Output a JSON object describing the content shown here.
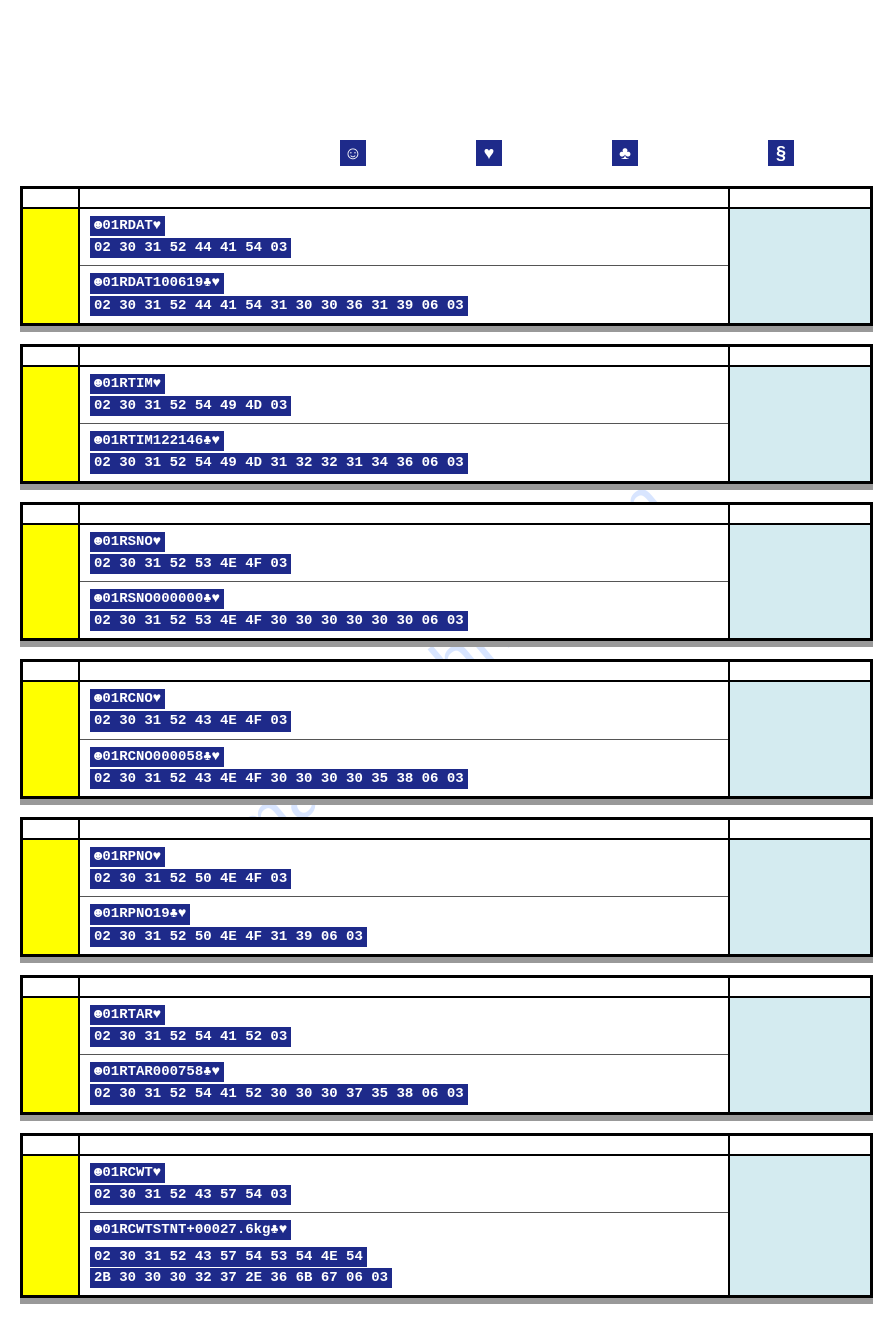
{
  "watermark_text": "manualshive.com",
  "header_icons": [
    "☺",
    "♥",
    "♣",
    "§"
  ],
  "icon_bg": "#1e2a8a",
  "label_bg": "#ffff00",
  "right_bg": "#d4ebf0",
  "tag_bg": "#1e2a8a",
  "tag_fg": "#ffffff",
  "sections": [
    {
      "rows": [
        {
          "cmd": "☻01RDAT♥",
          "hex": "02 30 31 52 44 41 54 03"
        },
        {
          "cmd": "☻01RDAT100619♣♥",
          "hex": "02 30 31 52 44 41 54 31 30 30 36 31 39 06 03"
        }
      ]
    },
    {
      "rows": [
        {
          "cmd": "☻01RTIM♥",
          "hex": "02 30 31 52 54 49 4D 03"
        },
        {
          "cmd": "☻01RTIM122146♣♥",
          "hex": "02 30 31 52 54 49 4D 31 32 32 31 34 36 06 03"
        }
      ]
    },
    {
      "rows": [
        {
          "cmd": "☻01RSNO♥",
          "hex": "02 30 31 52 53 4E 4F 03"
        },
        {
          "cmd": "☻01RSNO000000♣♥",
          "hex": "02 30 31 52 53 4E 4F 30 30 30 30 30 30 06 03"
        }
      ]
    },
    {
      "rows": [
        {
          "cmd": "☻01RCNO♥",
          "hex": "02 30 31 52 43 4E 4F 03"
        },
        {
          "cmd": "☻01RCNO000058♣♥",
          "hex": "02 30 31 52 43 4E 4F 30 30 30 30 35 38 06 03"
        }
      ]
    },
    {
      "rows": [
        {
          "cmd": "☻01RPNO♥",
          "hex": "02 30 31 52 50 4E 4F 03"
        },
        {
          "cmd": "☻01RPNO19♣♥",
          "hex": "02 30 31 52 50 4E 4F 31 39 06 03"
        }
      ]
    },
    {
      "rows": [
        {
          "cmd": "☻01RTAR♥",
          "hex": "02 30 31 52 54 41 52 03"
        },
        {
          "cmd": "☻01RTAR000758♣♥",
          "hex": "02 30 31 52 54 41 52 30 30 30 37 35 38 06 03"
        }
      ]
    },
    {
      "rows": [
        {
          "cmd": "☻01RCWT♥",
          "hex": "02 30 31 52 43 57 54 03"
        },
        {
          "cmd": "☻01RCWTSTNT+00027.6kg♣♥",
          "hex_lines": [
            "02 30 31 52 43 57 54 53 54 4E 54",
            "2B 30 30 30 32 37 2E 36 6B 67 06 03"
          ]
        }
      ]
    }
  ]
}
